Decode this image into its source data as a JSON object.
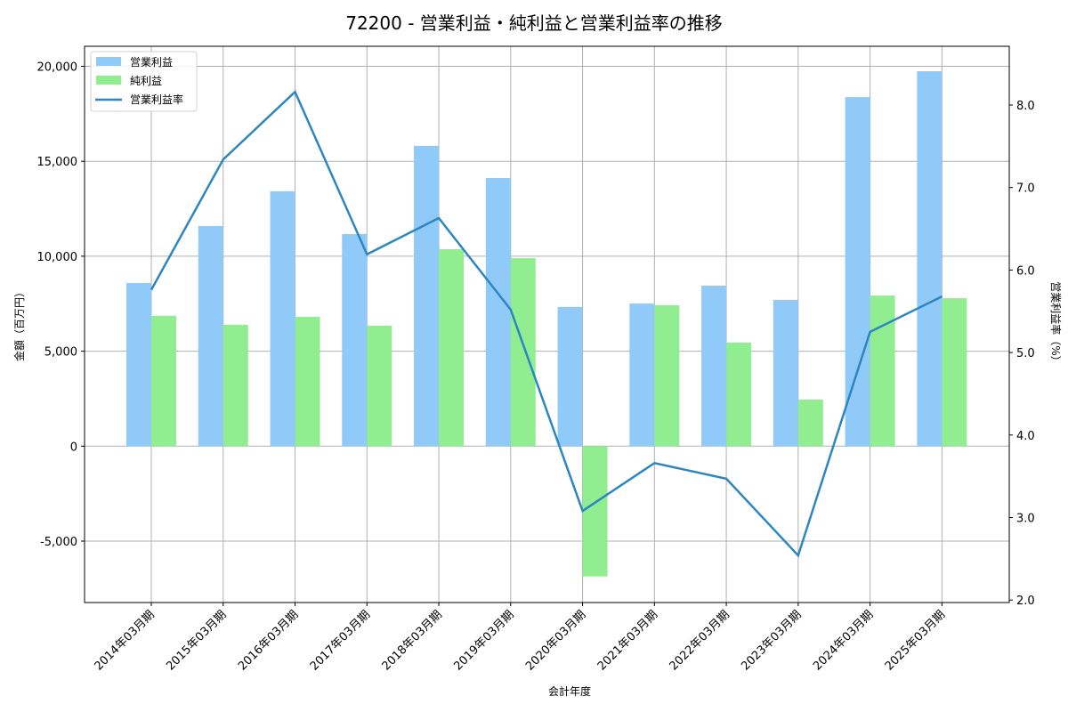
{
  "chart_data": {
    "type": "bar",
    "title": "72200 - 営業利益・純利益と営業利益率の推移",
    "xlabel": "会計年度",
    "ylabel": "金額（百万円）",
    "y2label": "営業利益率（%）",
    "categories": [
      "2014年03月期",
      "2015年03月期",
      "2016年03月期",
      "2017年03月期",
      "2018年03月期",
      "2019年03月期",
      "2020年03月期",
      "2021年03月期",
      "2022年03月期",
      "2023年03月期",
      "2024年03月期",
      "2025年03月期"
    ],
    "series": [
      {
        "name": "営業利益",
        "type": "bar",
        "axis": "left",
        "color": "#90caf9",
        "values": [
          8590,
          11590,
          13420,
          11170,
          15810,
          14120,
          7330,
          7510,
          8450,
          7700,
          18380,
          19740
        ]
      },
      {
        "name": "純利益",
        "type": "bar",
        "axis": "left",
        "color": "#90ee90",
        "values": [
          6860,
          6390,
          6810,
          6340,
          10370,
          9900,
          -6860,
          7420,
          5450,
          2450,
          7930,
          7790
        ]
      },
      {
        "name": "営業利益率",
        "type": "line",
        "axis": "right",
        "color": "#2e86c1",
        "values": [
          5.76,
          7.34,
          8.16,
          6.19,
          6.63,
          5.52,
          3.08,
          3.66,
          3.47,
          2.54,
          5.25,
          5.68
        ]
      }
    ],
    "ylim": [
      -8300,
      20900
    ],
    "yticks": [
      -5000,
      0,
      5000,
      10000,
      15000,
      20000
    ],
    "ytick_labels": [
      "-5,000",
      "0",
      "5,000",
      "10,000",
      "15,000",
      "20,000"
    ],
    "y2lim": [
      2.0,
      8.72
    ],
    "y2ticks": [
      2.0,
      3.0,
      4.0,
      5.0,
      6.0,
      7.0,
      8.0
    ],
    "y2tick_labels": [
      "2.0",
      "3.0",
      "4.0",
      "5.0",
      "6.0",
      "7.0",
      "8.0"
    ],
    "grid": true,
    "legend_position": "upper left",
    "legend": [
      "営業利益",
      "純利益",
      "営業利益率"
    ]
  }
}
